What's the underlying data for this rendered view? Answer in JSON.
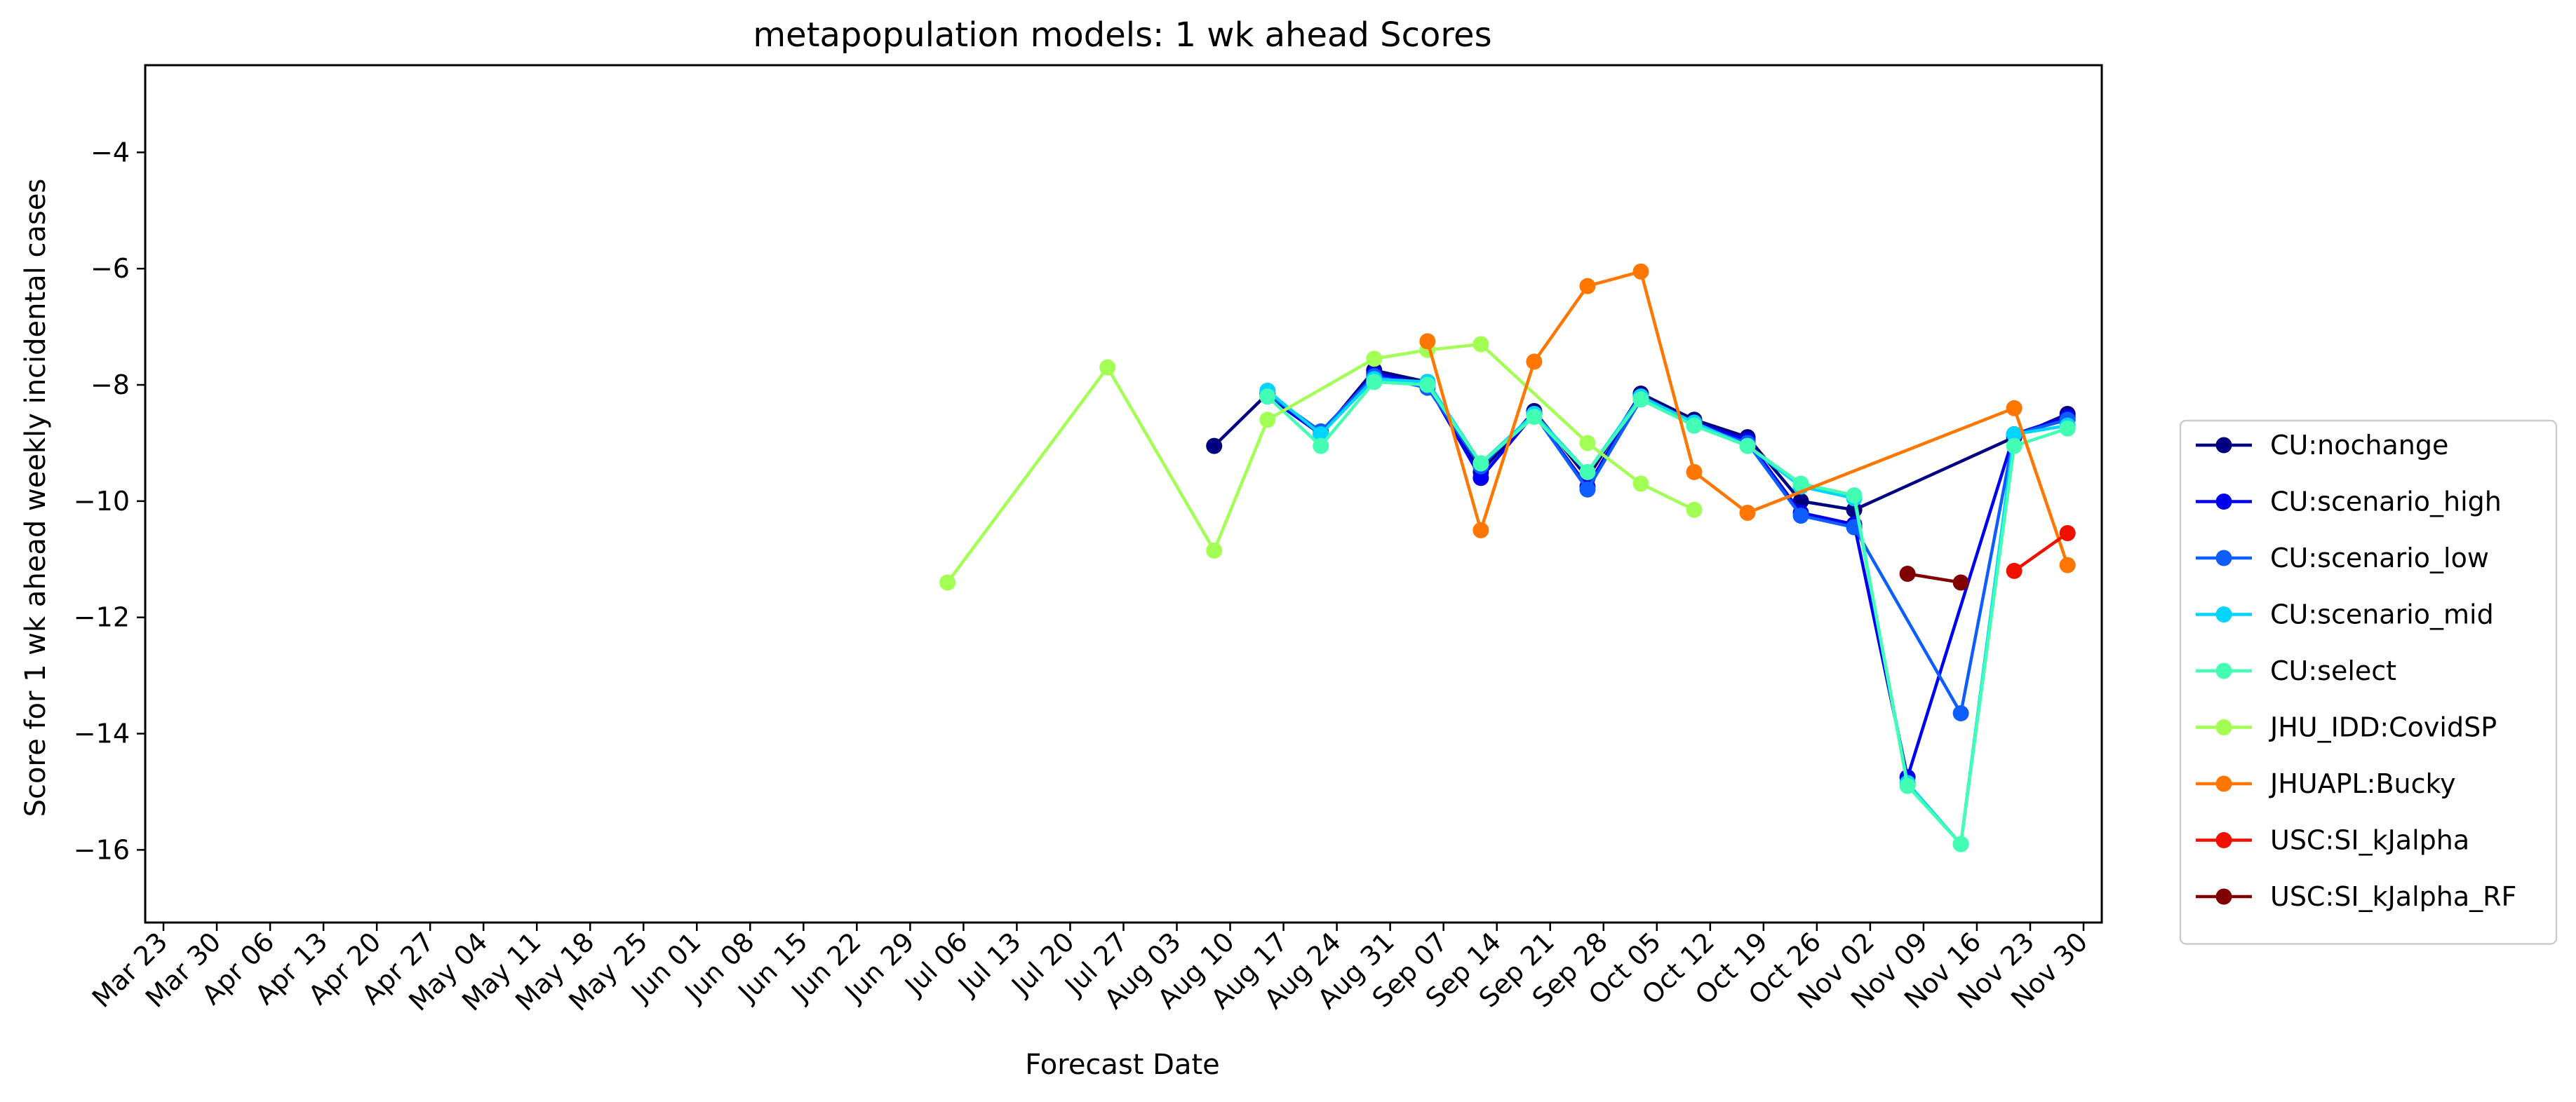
{
  "chart_data": {
    "type": "line",
    "title": "metapopulation models: 1 wk ahead Scores",
    "xlabel": "Forecast Date",
    "ylabel": "Score for 1 wk ahead weekly incidental cases",
    "x_categories": [
      "Mar 23",
      "Mar 30",
      "Apr 06",
      "Apr 13",
      "Apr 20",
      "Apr 27",
      "May 04",
      "May 11",
      "May 18",
      "May 25",
      "Jun 01",
      "Jun 08",
      "Jun 15",
      "Jun 22",
      "Jun 29",
      "Jul 06",
      "Jul 13",
      "Jul 20",
      "Jul 27",
      "Aug 03",
      "Aug 10",
      "Aug 17",
      "Aug 24",
      "Aug 31",
      "Sep 07",
      "Sep 14",
      "Sep 21",
      "Sep 28",
      "Oct 05",
      "Oct 12",
      "Oct 19",
      "Oct 26",
      "Nov 02",
      "Nov 09",
      "Nov 16",
      "Nov 23",
      "Nov 30"
    ],
    "ylim": [
      -17.25,
      -2.5
    ],
    "yticks": [
      -4,
      -6,
      -8,
      -10,
      -12,
      -14,
      -16
    ],
    "ytick_labels": [
      "−4",
      "−6",
      "−8",
      "−10",
      "−12",
      "−14",
      "−16"
    ],
    "grid": false,
    "legend_position": "right",
    "series": [
      {
        "name": "CU:nochange",
        "color": "#000080",
        "points": [
          [
            19.7,
            -9.05
          ],
          [
            20.7,
            -8.15
          ],
          [
            21.7,
            -8.85
          ],
          [
            22.7,
            -7.75
          ],
          [
            23.7,
            -7.95
          ],
          [
            24.7,
            -9.5
          ],
          [
            25.7,
            -8.45
          ],
          [
            26.7,
            -9.6
          ],
          [
            27.7,
            -8.15
          ],
          [
            28.7,
            -8.6
          ],
          [
            29.7,
            -8.9
          ],
          [
            30.7,
            -10.0
          ],
          [
            31.7,
            -10.15
          ],
          [
            34.7,
            -8.9
          ],
          [
            35.7,
            -8.5
          ]
        ]
      },
      {
        "name": "CU:scenario_high",
        "color": "#0000f1",
        "points": [
          [
            20.7,
            -8.2
          ],
          [
            21.7,
            -8.85
          ],
          [
            22.7,
            -7.8
          ],
          [
            23.7,
            -8.0
          ],
          [
            24.7,
            -9.6
          ],
          [
            25.7,
            -8.5
          ],
          [
            26.7,
            -9.75
          ],
          [
            27.7,
            -8.2
          ],
          [
            28.7,
            -8.65
          ],
          [
            29.7,
            -8.95
          ],
          [
            30.7,
            -10.2
          ],
          [
            31.7,
            -10.4
          ],
          [
            32.7,
            -14.75
          ],
          [
            34.7,
            -8.85
          ],
          [
            35.7,
            -8.55
          ]
        ]
      },
      {
        "name": "CU:scenario_low",
        "color": "#0d5dff",
        "points": [
          [
            20.7,
            -8.15
          ],
          [
            21.7,
            -8.8
          ],
          [
            22.7,
            -7.85
          ],
          [
            23.7,
            -8.05
          ],
          [
            24.7,
            -9.4
          ],
          [
            25.7,
            -8.5
          ],
          [
            26.7,
            -9.8
          ],
          [
            27.7,
            -8.25
          ],
          [
            28.7,
            -8.7
          ],
          [
            29.7,
            -9.0
          ],
          [
            30.7,
            -10.25
          ],
          [
            31.7,
            -10.45
          ],
          [
            33.7,
            -13.65
          ],
          [
            34.7,
            -8.85
          ],
          [
            35.7,
            -8.6
          ]
        ]
      },
      {
        "name": "CU:scenario_mid",
        "color": "#00d5ff",
        "points": [
          [
            20.7,
            -8.1
          ],
          [
            21.7,
            -8.85
          ],
          [
            22.7,
            -7.9
          ],
          [
            23.7,
            -7.95
          ],
          [
            24.7,
            -9.35
          ],
          [
            25.7,
            -8.5
          ],
          [
            26.7,
            -9.5
          ],
          [
            27.7,
            -8.2
          ],
          [
            28.7,
            -8.65
          ],
          [
            29.7,
            -9.05
          ],
          [
            30.7,
            -9.75
          ],
          [
            31.7,
            -9.95
          ],
          [
            32.7,
            -14.85
          ],
          [
            33.7,
            -15.9
          ],
          [
            34.7,
            -8.85
          ],
          [
            35.7,
            -8.7
          ]
        ]
      },
      {
        "name": "CU:select",
        "color": "#43ffb4",
        "points": [
          [
            20.7,
            -8.2
          ],
          [
            21.7,
            -9.05
          ],
          [
            22.7,
            -7.95
          ],
          [
            23.7,
            -8.0
          ],
          [
            24.7,
            -9.35
          ],
          [
            25.7,
            -8.55
          ],
          [
            26.7,
            -9.5
          ],
          [
            27.7,
            -8.25
          ],
          [
            28.7,
            -8.7
          ],
          [
            29.7,
            -9.05
          ],
          [
            30.7,
            -9.7
          ],
          [
            31.7,
            -9.9
          ],
          [
            32.7,
            -14.9
          ],
          [
            33.7,
            -15.9
          ],
          [
            34.7,
            -9.05
          ],
          [
            35.7,
            -8.75
          ]
        ]
      },
      {
        "name": "JHU_IDD:CovidSP",
        "color": "#a2ff54",
        "points": [
          [
            14.7,
            -11.4
          ],
          [
            17.7,
            -7.7
          ],
          [
            19.7,
            -10.85
          ],
          [
            20.7,
            -8.6
          ],
          [
            22.7,
            -7.55
          ],
          [
            23.7,
            -7.4
          ],
          [
            24.7,
            -7.3
          ],
          [
            26.7,
            -9.0
          ],
          [
            27.7,
            -9.7
          ],
          [
            28.7,
            -10.15
          ]
        ]
      },
      {
        "name": "JHUAPL:Bucky",
        "color": "#ff7700",
        "points": [
          [
            23.7,
            -7.25
          ],
          [
            24.7,
            -10.5
          ],
          [
            25.7,
            -7.6
          ],
          [
            26.7,
            -6.3
          ],
          [
            27.7,
            -6.05
          ],
          [
            28.7,
            -9.5
          ],
          [
            29.7,
            -10.2
          ],
          [
            34.7,
            -8.4
          ],
          [
            35.7,
            -11.1
          ]
        ]
      },
      {
        "name": "USC:SI_kJalpha",
        "color": "#f01000",
        "points": [
          [
            34.7,
            -11.2
          ],
          [
            35.7,
            -10.55
          ]
        ]
      },
      {
        "name": "USC:SI_kJalpha_RF",
        "color": "#800000",
        "points": [
          [
            32.7,
            -11.25
          ],
          [
            33.7,
            -11.4
          ]
        ]
      }
    ]
  }
}
